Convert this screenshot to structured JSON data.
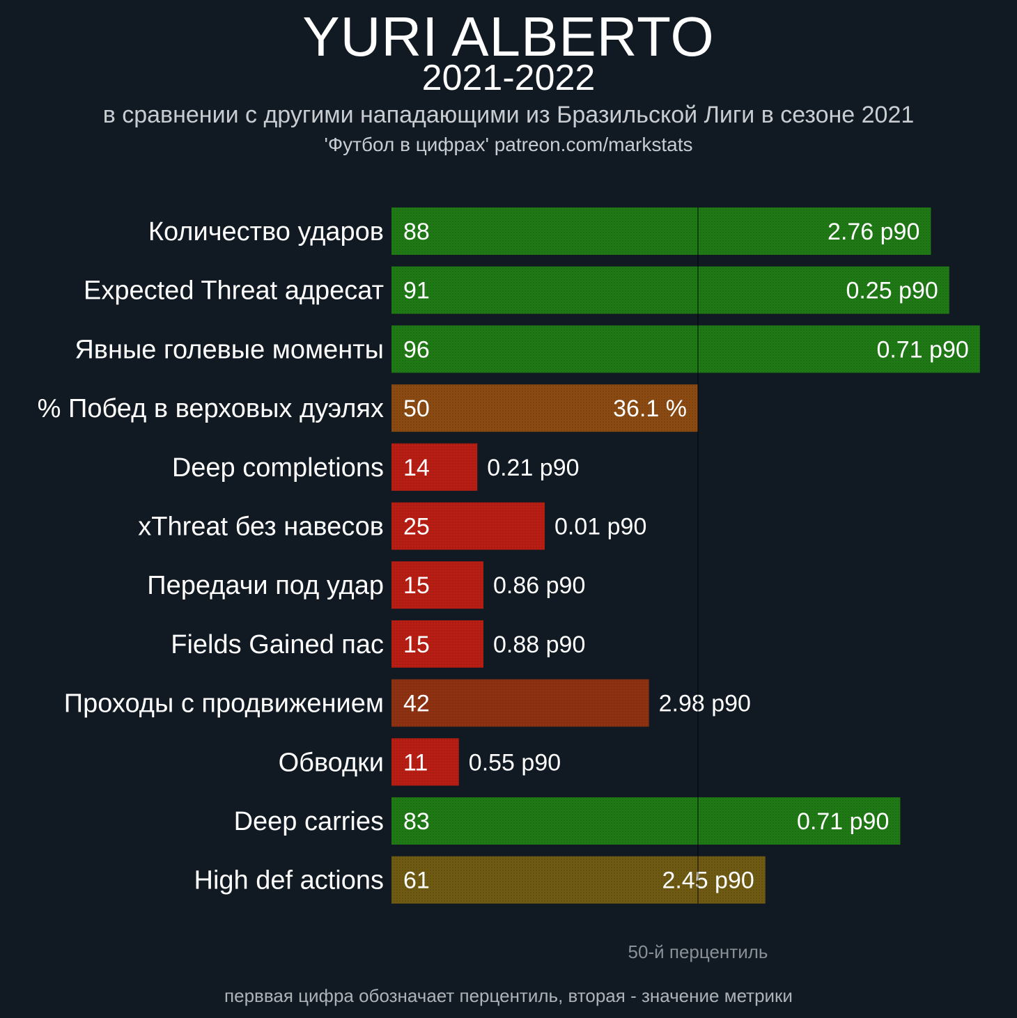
{
  "header": {
    "title": "YURI ALBERTO",
    "season": "2021-2022",
    "subtitle": "в сравнении с другими нападающими из Бразильской Лиги в сезоне 2021",
    "credit": "'Футбол в цифрах' patreon.com/markstats"
  },
  "footer": {
    "median_label": "50-й перцентиль",
    "note": "перввая цифра обозначает перцентиль, вторая - значение метрики"
  },
  "colors": {
    "background": "#111a22",
    "high": "#1f7a16",
    "mid_high": "#6e5a12",
    "mid": "#8a4a12",
    "low_mid": "#8f3212",
    "low": "#b81e14"
  },
  "chart_data": {
    "type": "bar",
    "orientation": "horizontal",
    "xlim": [
      0,
      100
    ],
    "median_line": 50,
    "categories": [
      "Количество ударов",
      "Expected Threat адресат",
      "Явные голевые моменты",
      "% Побед в верховых дуэлях",
      "Deep completions",
      "xThreat без навесов",
      "Передачи под удар",
      "Fields Gained пас",
      "Проходы с продвижением",
      "Обводки",
      "Deep carries",
      "High def actions"
    ],
    "percentiles": [
      88,
      91,
      96,
      50,
      14,
      25,
      15,
      15,
      42,
      11,
      83,
      61
    ],
    "values": [
      "2.76 p90",
      "0.25 p90",
      "0.71 p90",
      "36.1 %",
      "0.21 p90",
      "0.01 p90",
      "0.86 p90",
      "0.88 p90",
      "2.98 p90",
      "0.55 p90",
      "0.71 p90",
      "2.45 p90"
    ]
  }
}
